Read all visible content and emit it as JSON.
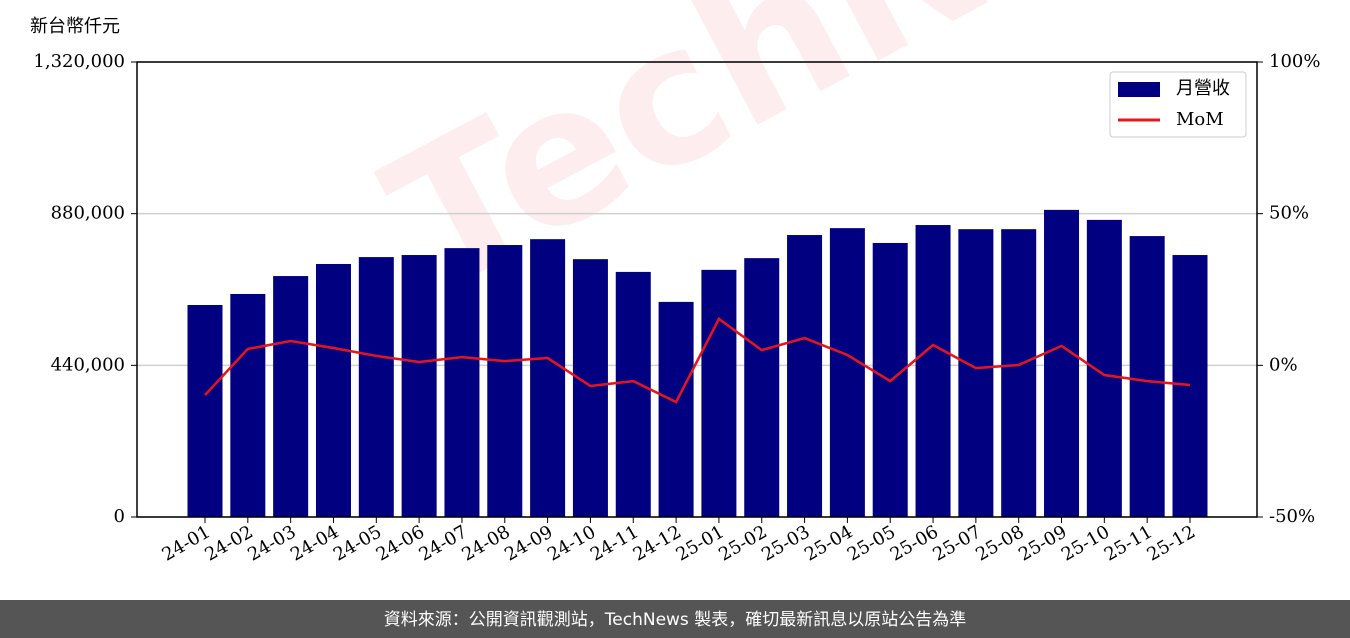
{
  "chart_data": {
    "type": "bar_line",
    "y_label": "新台幣仟元",
    "categories": [
      "24-01",
      "24-02",
      "24-03",
      "24-04",
      "24-05",
      "24-06",
      "24-07",
      "24-08",
      "24-09",
      "24-10",
      "24-11",
      "24-12",
      "25-01",
      "25-02",
      "25-03",
      "25-04",
      "25-05",
      "25-06",
      "25-07",
      "25-08",
      "25-09",
      "25-10",
      "25-11",
      "25-12"
    ],
    "series": [
      {
        "name": "月營收",
        "color": "#000080",
        "kind": "bar",
        "values": [
          615000,
          647000,
          699000,
          734000,
          754000,
          760000,
          780000,
          789000,
          806000,
          748000,
          711000,
          624000,
          717000,
          751000,
          818000,
          838000,
          795000,
          847000,
          835000,
          835000,
          891000,
          862000,
          815000,
          760000
        ]
      },
      {
        "name": "MoM",
        "color": "#e8141b",
        "kind": "line",
        "axis": "y2",
        "values": [
          -9.8,
          5.4,
          8.0,
          5.7,
          3.1,
          1.1,
          2.7,
          1.4,
          2.4,
          -6.8,
          -5.2,
          -12.1,
          15.3,
          5.0,
          9.0,
          3.4,
          -5.2,
          6.7,
          -0.9,
          0.1,
          6.4,
          -3.2,
          -5.2,
          -6.5
        ]
      }
    ],
    "ylim": [
      0,
      1320000
    ],
    "yticks": [
      0,
      {
        "value": 440000,
        "label": "440,000"
      },
      {
        "value": 880000,
        "label": "880,000"
      },
      {
        "value": 1320000,
        "label": "1,320,000"
      }
    ],
    "y2lim": [
      -50,
      100
    ],
    "y2ticks": [
      {
        "value": -50,
        "label": "-50%"
      },
      {
        "value": 0,
        "label": "0%"
      },
      {
        "value": 50,
        "label": "50%"
      },
      {
        "value": 100,
        "label": "100%"
      }
    ],
    "grid": true,
    "legend": "upper right",
    "watermark": "TechNews",
    "footer": "資料來源：公開資訊觀測站，TechNews 製表，確切最新訊息以原站公告為準"
  }
}
